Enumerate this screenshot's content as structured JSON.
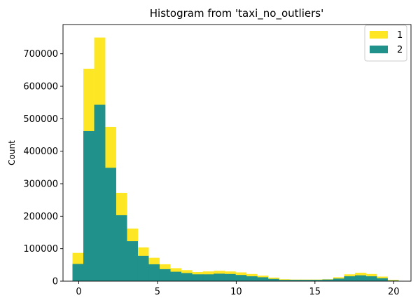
{
  "chart_data": {
    "type": "bar",
    "title": "Histogram from 'taxi_no_outliers'",
    "xlabel": "",
    "ylabel": "Count",
    "xlim": [
      -1.0,
      21.1
    ],
    "ylim": [
      0,
      790000
    ],
    "xticks": [
      0,
      5,
      10,
      15,
      20
    ],
    "yticks": [
      0,
      100000,
      200000,
      300000,
      400000,
      500000,
      600000,
      700000
    ],
    "bin_start": -0.4,
    "bin_width": 0.69,
    "grid": false,
    "legend_position": "top-right",
    "series": [
      {
        "name": "1",
        "color": "#fde725",
        "values": [
          87000,
          654000,
          750000,
          475000,
          272000,
          162000,
          104000,
          72000,
          52000,
          40000,
          34000,
          28000,
          30000,
          32000,
          30000,
          27000,
          22000,
          17000,
          11000,
          6000,
          5000,
          5000,
          5000,
          6000,
          12000,
          21000,
          26000,
          22000,
          14000,
          4000
        ]
      },
      {
        "name": "2",
        "color": "#21918c",
        "values": [
          53000,
          462000,
          543000,
          349000,
          203000,
          123000,
          78000,
          52000,
          37000,
          29000,
          25000,
          21000,
          21000,
          23000,
          22000,
          19000,
          15000,
          12000,
          7000,
          4000,
          4000,
          4000,
          4000,
          5000,
          8000,
          15000,
          18000,
          15000,
          9000,
          2000
        ]
      }
    ]
  }
}
